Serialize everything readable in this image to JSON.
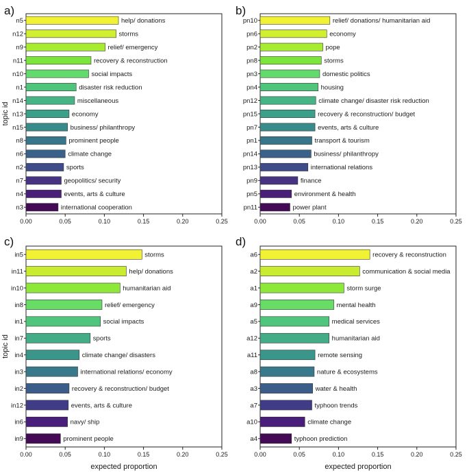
{
  "chart_data": [
    {
      "type": "bar",
      "orientation": "horizontal",
      "panel_label": "a)",
      "ylabel": "topic id",
      "xlabel": "",
      "xlim": [
        0,
        0.25
      ],
      "xticks": [
        "0.00",
        "0.05",
        "0.10",
        "0.15",
        "0.20",
        "0.25"
      ],
      "categories": [
        "n5",
        "n12",
        "n9",
        "n11",
        "n10",
        "n1",
        "n14",
        "n13",
        "n15",
        "n8",
        "n6",
        "n2",
        "n7",
        "n4",
        "n3"
      ],
      "bar_labels": [
        "help/ donations",
        "storms",
        "relief/ emergency",
        "recovery & reconstruction",
        "social impacts",
        "disaster risk reduction",
        "miscellaneous",
        "economy",
        "business/ philanthropy",
        "prominent people",
        "climate change",
        "sports",
        "geopolitics/ security",
        "events, arts & culture",
        "international cooperation"
      ],
      "values": [
        0.118,
        0.115,
        0.101,
        0.083,
        0.08,
        0.064,
        0.062,
        0.055,
        0.053,
        0.051,
        0.05,
        0.048,
        0.045,
        0.045,
        0.041
      ]
    },
    {
      "type": "bar",
      "orientation": "horizontal",
      "panel_label": "b)",
      "ylabel": "",
      "xlabel": "",
      "xlim": [
        0,
        0.25
      ],
      "xticks": [
        "0.00",
        "0.05",
        "0.10",
        "0.15",
        "0.20",
        "0.25"
      ],
      "categories": [
        "pn10",
        "pn6",
        "pn2",
        "pn8",
        "pn3",
        "pn4",
        "pn12",
        "pn15",
        "pn7",
        "pn1",
        "pn14",
        "pn13",
        "pn9",
        "pn5",
        "pn11"
      ],
      "bar_labels": [
        "relief/ donations/ humanitarian aid",
        "economy",
        "pope",
        "storms",
        "domestic politics",
        "housing",
        "climate change/  disaster risk reduction",
        "recovery & reconstruction/ budget",
        "events, arts & culture",
        "transport & tourism",
        "business/ philanthropy",
        "international relations",
        "finance",
        "environment & health",
        "power plant"
      ],
      "values": [
        0.089,
        0.085,
        0.08,
        0.078,
        0.076,
        0.074,
        0.071,
        0.07,
        0.07,
        0.066,
        0.065,
        0.061,
        0.048,
        0.04,
        0.038
      ]
    },
    {
      "type": "bar",
      "orientation": "horizontal",
      "panel_label": "c)",
      "ylabel": "topic id",
      "xlabel": "expected proportion",
      "xlim": [
        0,
        0.25
      ],
      "xticks": [
        "0.00",
        "0.05",
        "0.10",
        "0.15",
        "0.20",
        "0.25"
      ],
      "categories": [
        "in5",
        "in11",
        "in10",
        "in8",
        "in1",
        "in7",
        "in4",
        "in3",
        "in2",
        "in12",
        "in6",
        "in9"
      ],
      "bar_labels": [
        "storms",
        "help/ donations",
        "humanitarian aid",
        "relief/ emergency",
        "social impacts",
        "sports",
        "climate change/ disasters",
        "international relations/ economy",
        "recovery & reconstruction/ budget",
        "events, arts & culture",
        "navy/ ship",
        "prominent people"
      ],
      "values": [
        0.148,
        0.128,
        0.12,
        0.097,
        0.095,
        0.082,
        0.068,
        0.066,
        0.055,
        0.054,
        0.053,
        0.044
      ]
    },
    {
      "type": "bar",
      "orientation": "horizontal",
      "panel_label": "d)",
      "ylabel": "",
      "xlabel": "expected proportion",
      "xlim": [
        0,
        0.25
      ],
      "xticks": [
        "0.00",
        "0.05",
        "0.10",
        "0.15",
        "0.20",
        "0.25"
      ],
      "categories": [
        "a6",
        "a2",
        "a1",
        "a9",
        "a5",
        "a12",
        "a11",
        "a8",
        "a3",
        "a7",
        "a10",
        "a4"
      ],
      "bar_labels": [
        "recovery & reconstruction",
        "communication & social media",
        "storm surge",
        "mental health",
        "medical services",
        "humanitarian aid",
        "remote sensing",
        "nature & ecosystems",
        "water & health",
        "typhoon trends",
        "climate change",
        "typhoon prediction"
      ],
      "values": [
        0.14,
        0.127,
        0.107,
        0.094,
        0.088,
        0.088,
        0.07,
        0.069,
        0.067,
        0.066,
        0.057,
        0.04
      ]
    }
  ],
  "colors": {
    "palette_15": [
      "#f1f233",
      "#d2ee30",
      "#a7ec30",
      "#7be53b",
      "#63db6c",
      "#4fc57c",
      "#47b486",
      "#3ba089",
      "#3a8c8a",
      "#38768b",
      "#3a618a",
      "#3f4c89",
      "#463483",
      "#4a1f78",
      "#440a56"
    ],
    "palette_12": [
      "#f1f233",
      "#c9ec30",
      "#8de83a",
      "#67dd66",
      "#50c57d",
      "#44ad87",
      "#3a958a",
      "#38798b",
      "#3b5d8a",
      "#403d86",
      "#4a1f7b",
      "#440a56"
    ]
  }
}
